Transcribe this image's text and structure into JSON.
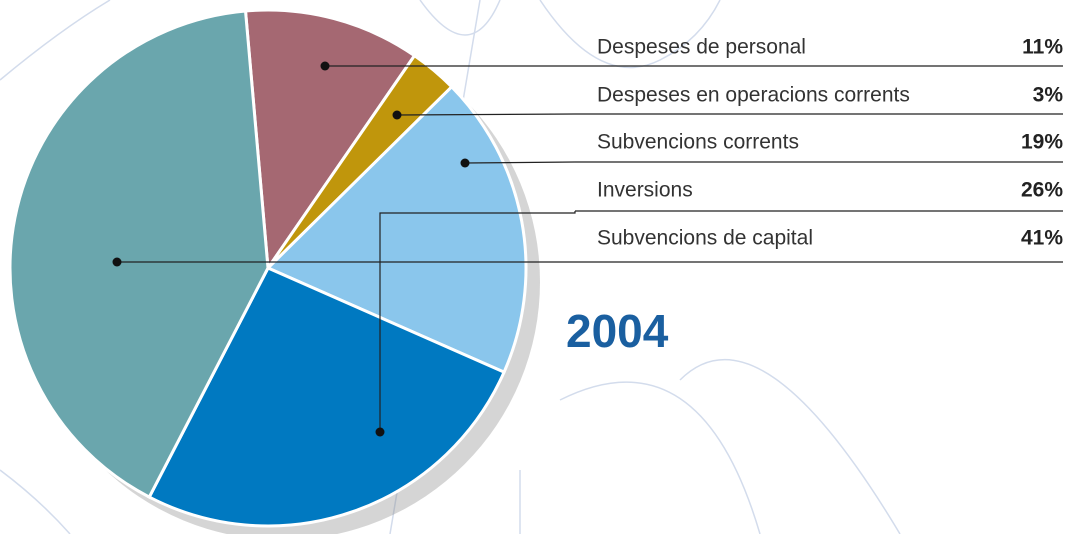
{
  "chart_data": {
    "type": "pie",
    "subtitle": "2004",
    "categories": [
      "Despeses de personal",
      "Despeses en operacions corrents",
      "Subvencions corrents",
      "Inversions",
      "Subvencions de capital"
    ],
    "values": [
      11,
      3,
      19,
      26,
      41
    ],
    "value_labels": [
      "11%",
      "3%",
      "19%",
      "26%",
      "41%"
    ],
    "colors": [
      "#a56872",
      "#c0960c",
      "#8ac6ec",
      "#0079c1",
      "#6aa6ad"
    ]
  }
}
